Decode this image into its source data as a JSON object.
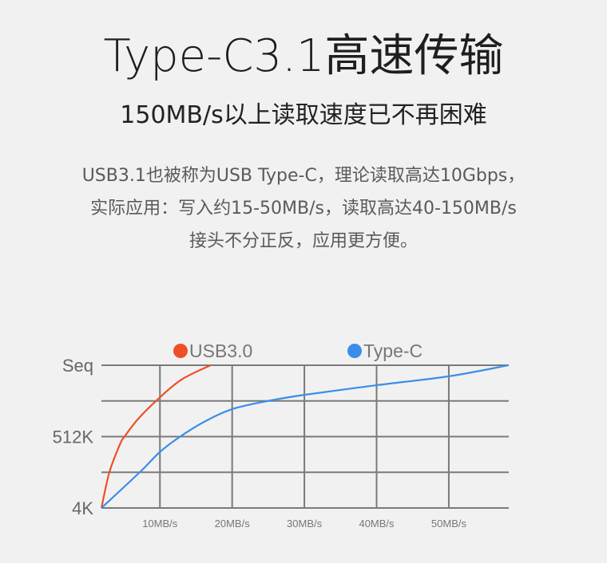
{
  "header": {
    "title": "Type-C3.1高速传输",
    "subtitle": "150MB/s以上读取速度已不再困难"
  },
  "description": [
    "USB3.1也被称为USB Type-C，理论读取高达10Gbps，",
    "实际应用：写入约15-50MB/s，读取高达40-150MB/s",
    "接头不分正反，应用更方便。"
  ],
  "chart_data": {
    "type": "line",
    "title": "",
    "xlabel": "",
    "ylabel": "",
    "x_ticks": [
      10,
      20,
      30,
      40,
      50
    ],
    "x_tick_labels": [
      "10MB/s",
      "20MB/s",
      "30MB/s",
      "40MB/s",
      "50MB/s"
    ],
    "xlim": [
      1.9,
      58.3
    ],
    "y_levels": [
      0,
      1,
      2,
      3,
      4
    ],
    "y_tick_labels": [
      "4K",
      "",
      "512K",
      "",
      "Seq"
    ],
    "ylim": [
      0,
      4
    ],
    "grid": true,
    "legend_placement": "top",
    "series": [
      {
        "name": "USB3.0",
        "color": "#ee4f27",
        "points": [
          [
            1.9,
            0
          ],
          [
            3.0,
            1
          ],
          [
            4.5,
            1.8
          ],
          [
            5.1,
            2
          ],
          [
            7.0,
            2.5
          ],
          [
            10,
            3.1
          ],
          [
            13,
            3.6
          ],
          [
            17,
            4.0
          ]
        ]
      },
      {
        "name": "Type-C",
        "color": "#3b8ee8",
        "points": [
          [
            1.9,
            0
          ],
          [
            7.2,
            1
          ],
          [
            10,
            1.57
          ],
          [
            12.8,
            2
          ],
          [
            16,
            2.4
          ],
          [
            20,
            2.77
          ],
          [
            25,
            3.0
          ],
          [
            30,
            3.17
          ],
          [
            40,
            3.44
          ],
          [
            50,
            3.69
          ],
          [
            58.3,
            4.0
          ]
        ]
      }
    ]
  }
}
